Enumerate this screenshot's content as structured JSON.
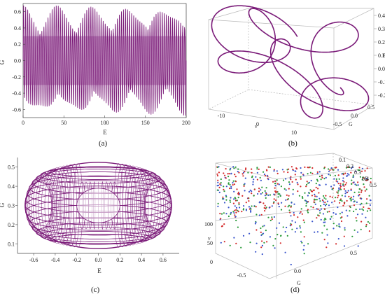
{
  "colors": {
    "purple": "#7a1a78",
    "axis": "#444444",
    "box": "#b8b8b8",
    "red": "#d42a2a",
    "green": "#2a9a3a",
    "blue": "#3a55cc"
  },
  "chart_data": [
    {
      "panel": "a",
      "caption": "(a)",
      "type": "line",
      "xlabel": "E",
      "ylabel": "G",
      "xlim": [
        0,
        200
      ],
      "ylim": [
        -0.7,
        0.7
      ],
      "xticks": [
        "0",
        "50",
        "100",
        "150",
        "200"
      ],
      "yticks": [
        "-0.6",
        "-0.4",
        "-0.2",
        "0.0",
        "0.2",
        "0.4",
        "0.6"
      ],
      "series": [
        {
          "fast_period": 2.5,
          "envelope_max": 0.68,
          "envelope_min": 0.55,
          "beat_period": 40,
          "inner_band": 0.3
        }
      ]
    },
    {
      "panel": "b",
      "caption": "(b)",
      "type": "line",
      "projection": "3d",
      "axis_labels": [
        "G",
        "ν",
        "E"
      ],
      "ticks_right": [
        "0.4",
        "0.3",
        "0.2",
        "0.1",
        "0.0",
        "-0.1",
        "-0.2"
      ],
      "ticks_bottom_right": [
        "0.5",
        "0.0",
        "-0.5"
      ],
      "ticks_bottom_left": [
        "10",
        "0",
        "-10"
      ],
      "series": [
        {
          "loops": 6
        }
      ]
    },
    {
      "panel": "c",
      "caption": "(c)",
      "type": "line",
      "xlabel": "E",
      "ylabel": "G",
      "xlim": [
        -0.75,
        0.75
      ],
      "ylim": [
        0.05,
        0.55
      ],
      "xticks": [
        "-0.6",
        "-0.4",
        "-0.2",
        "0.0",
        "0.2",
        "0.4",
        "0.6"
      ],
      "yticks": [
        "0.1",
        "0.2",
        "0.3",
        "0.4",
        "0.5"
      ],
      "series": [
        {
          "shape": "torus",
          "outer_rx": 0.68,
          "center_y": 0.3,
          "outer_ry": 0.225,
          "hole_ry": 0.09
        }
      ]
    },
    {
      "panel": "d",
      "caption": "(d)",
      "type": "scatter",
      "projection": "3d",
      "axis_labels": [
        "E",
        "ν",
        "G"
      ],
      "ticks_E": [
        "0.1",
        "0.2",
        "0.3",
        "0.4",
        "0.5"
      ],
      "ticks_nu": [
        "100",
        "50",
        "0"
      ],
      "ticks_G": [
        "-0.5",
        "0.0",
        "0.5"
      ],
      "series": [
        {
          "points": 700,
          "colors": [
            "red",
            "green",
            "blue"
          ]
        }
      ]
    }
  ]
}
